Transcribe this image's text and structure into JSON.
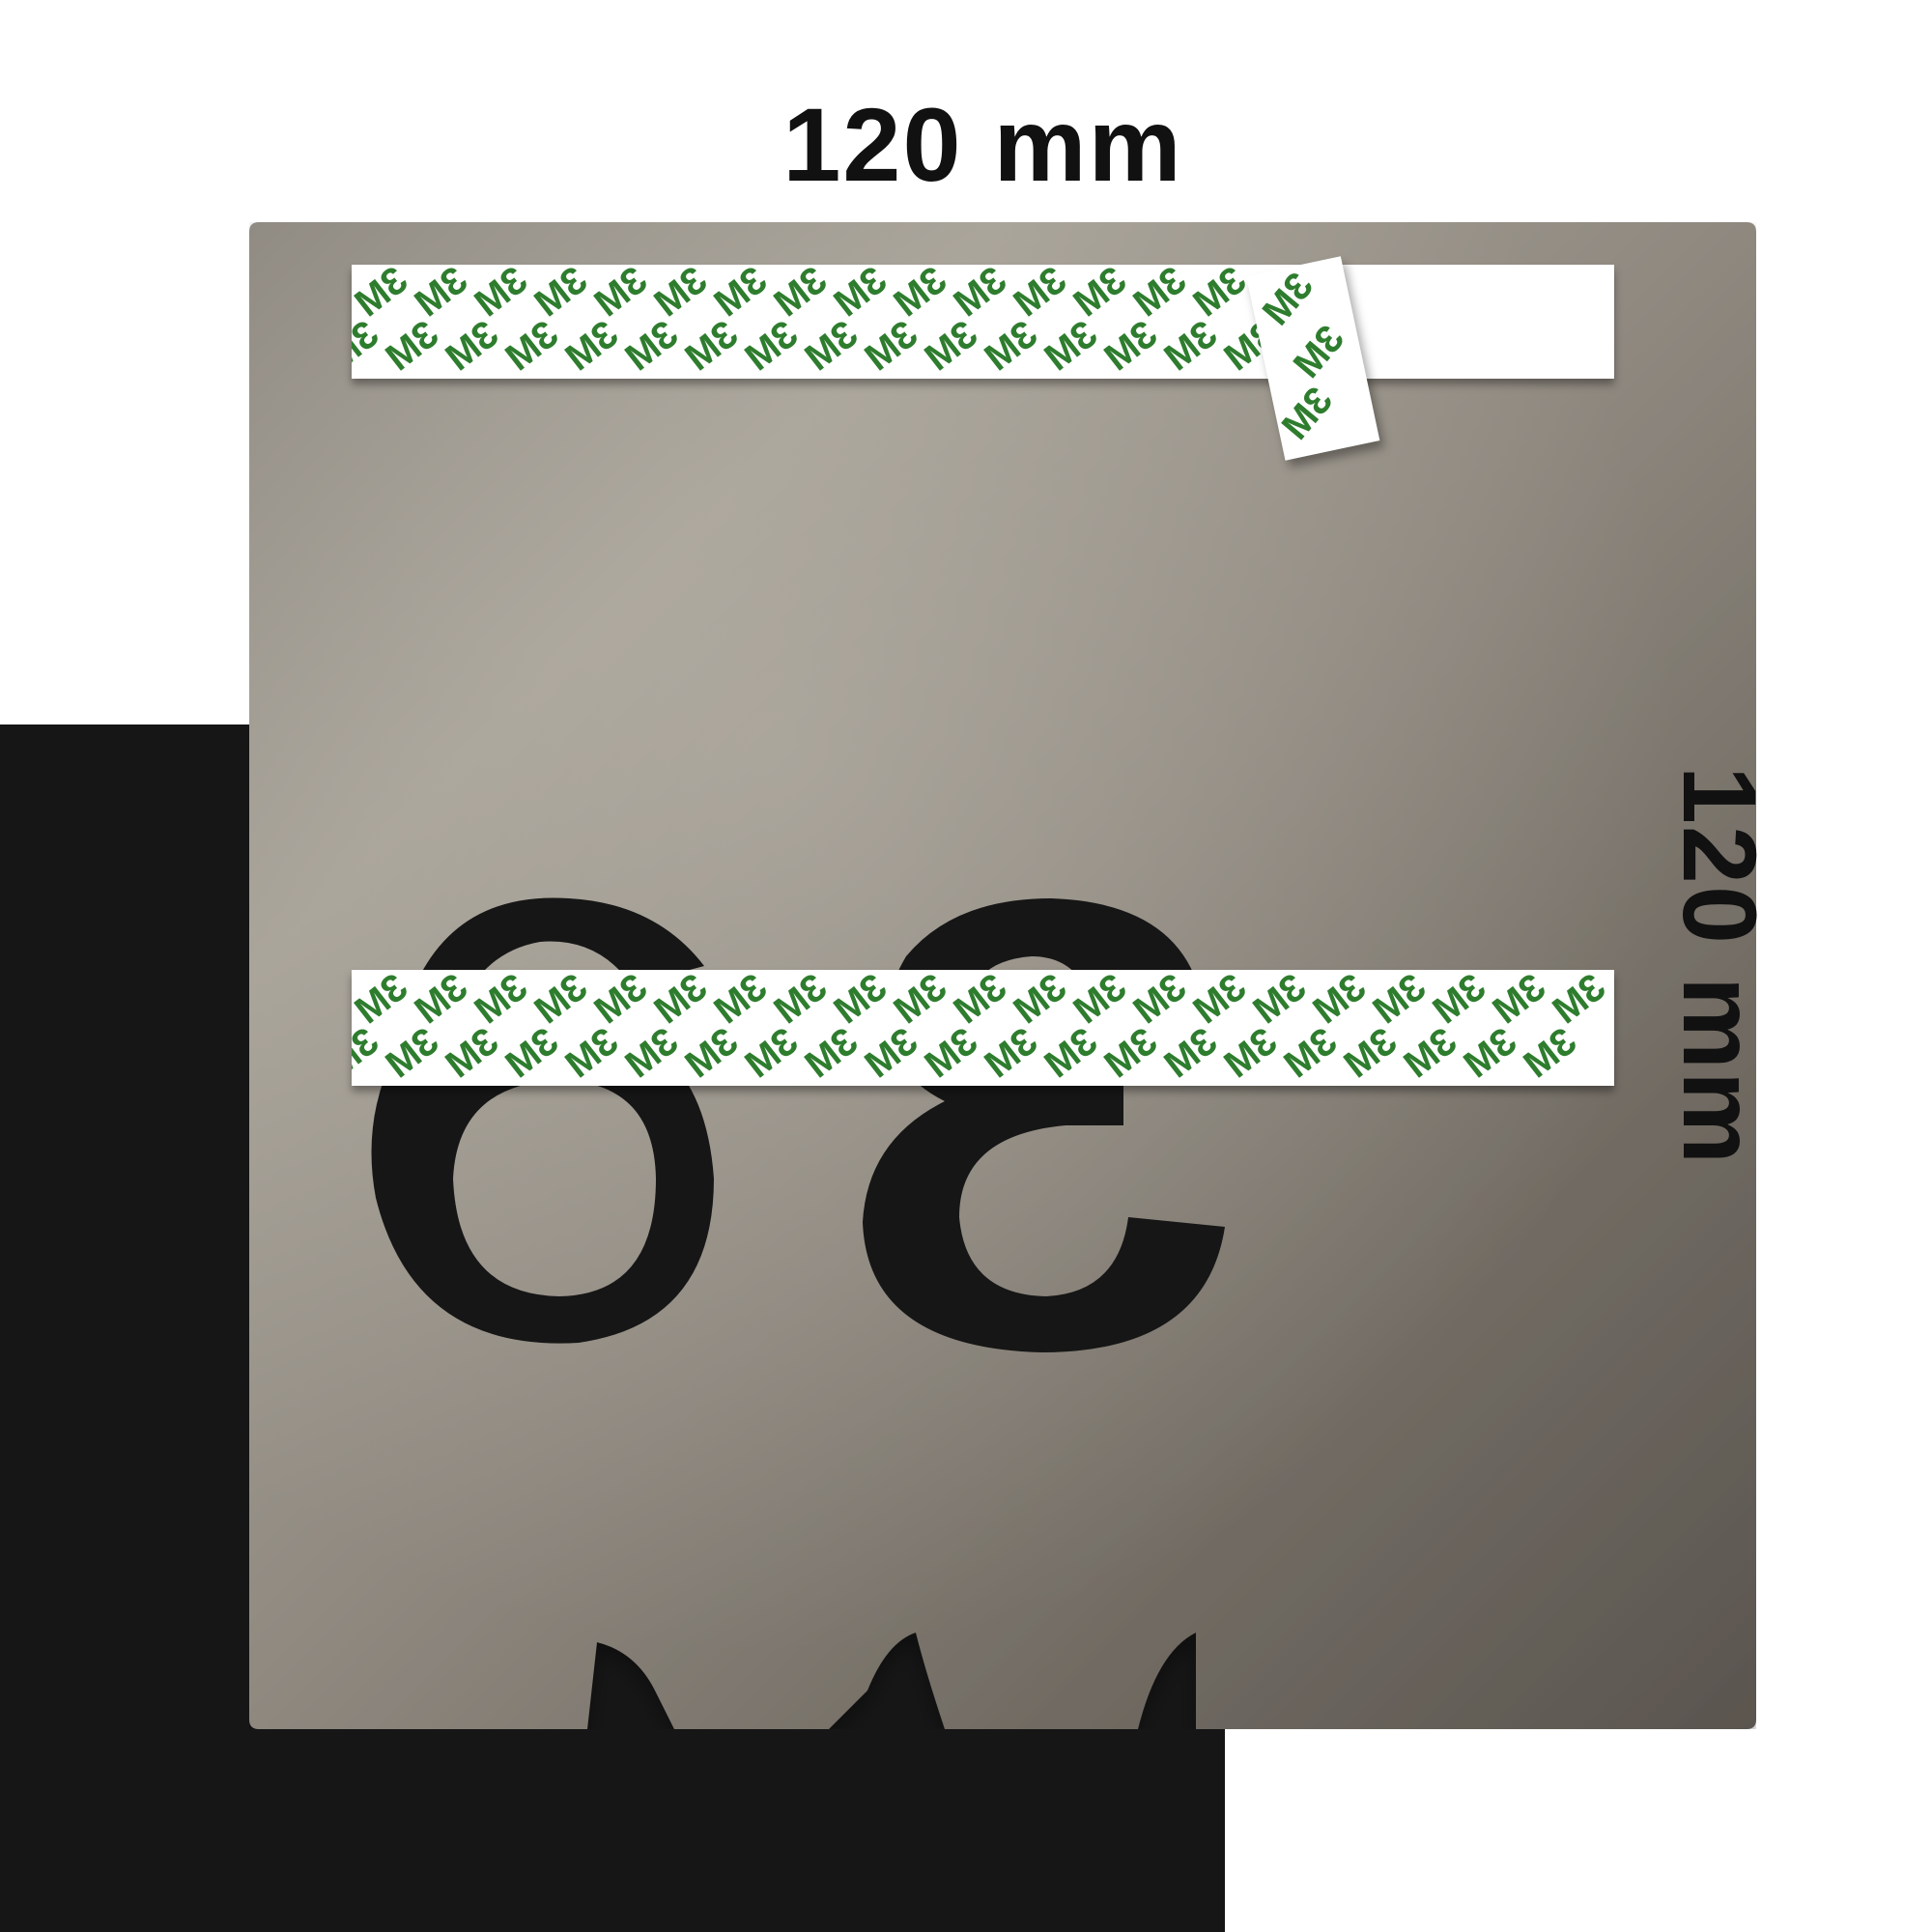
{
  "dimensions": {
    "width_label": "120 mm",
    "height_label": "120 mm"
  },
  "tape": {
    "logo_text": "3M",
    "logo_color": "#2e7d2e"
  },
  "plate": {
    "number": "36",
    "material_color": "#8a857d"
  }
}
